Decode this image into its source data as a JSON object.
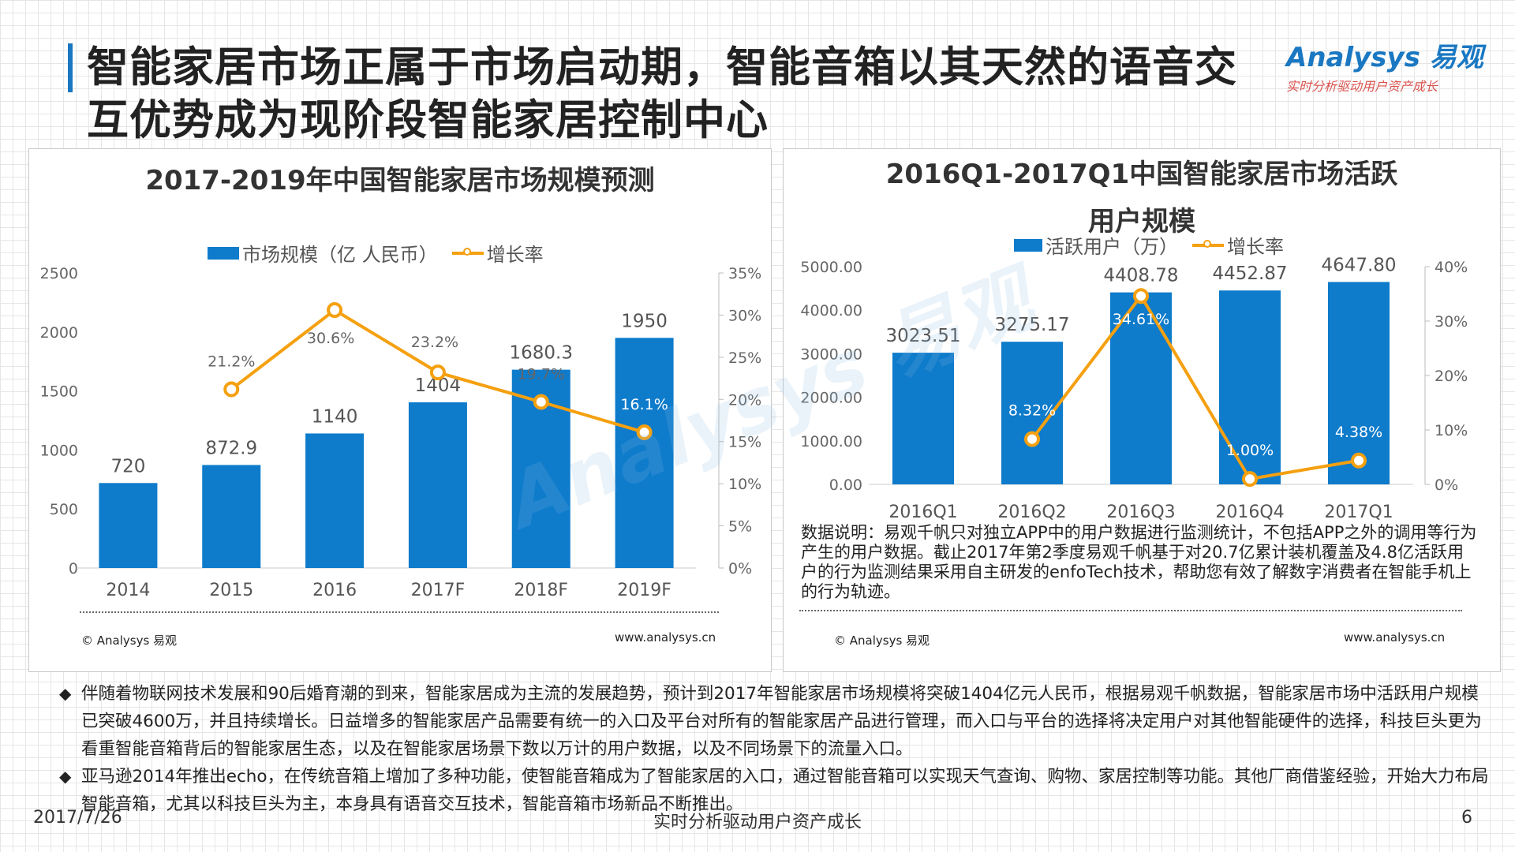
{
  "page": {
    "title_line1": "智能家居市场正属于市场启动期，智能音箱以其天然的语音交",
    "title_line2": "互优势成为现阶段智能家居控制中心",
    "logo_main": "Analysys 易观",
    "logo_sub": "实时分析驱动用户资产成长",
    "date": "2017/7/26",
    "slogan": "实时分析驱动用户资产成长",
    "page_number": "6",
    "bullets": [
      "伴随着物联网技术发展和90后婚育潮的到来，智能家居成为主流的发展趋势，预计到2017年智能家居市场规模将突破1404亿元人民币，根据易观千帆数据，智能家居市场中活跃用户规模已突破4600万，并且持续增长。日益增多的智能家居产品需要有统一的入口及平台对所有的智能家居产品进行管理，而入口与平台的选择将决定用户对其他智能硬件的选择，科技巨头更为看重智能音箱背后的智能家居生态，以及在智能家居场景下数以万计的用户数据，以及不同场景下的流量入口。",
      "亚马逊2014年推出echo，在传统音箱上增加了多种功能，使智能音箱成为了智能家居的入口，通过智能音箱可以实现天气查询、购物、家居控制等功能。其他厂商借鉴经验，开始大力布局智能音箱，尤其以科技巨头为主，本身具有语音交互技术，智能音箱市场新品不断推出。"
    ],
    "bullet_marker": "◆",
    "watermark": "Analysys 易观"
  },
  "colors": {
    "bar": "#0e7bcb",
    "line": "#f5a00f",
    "accent": "#1a78c2"
  },
  "chart_data": [
    {
      "type": "bar",
      "title": "2017-2019年中国智能家居市场规模预测",
      "categories": [
        "2014",
        "2015",
        "2016",
        "2017F",
        "2018F",
        "2019F"
      ],
      "series": [
        {
          "name": "市场规模（亿 人民币）",
          "type": "bar",
          "axis": "left",
          "values": [
            720,
            872.9,
            1140,
            1404,
            1680.3,
            1950
          ],
          "labels": [
            "720",
            "872.9",
            "1140",
            "1404",
            "1680.3",
            "1950"
          ]
        },
        {
          "name": "增长率",
          "type": "line",
          "axis": "right",
          "values": [
            null,
            21.2,
            30.6,
            23.2,
            19.7,
            16.1
          ],
          "labels": [
            "",
            "21.2%",
            "30.6%",
            "23.2%",
            "19.7%",
            "16.1%"
          ]
        }
      ],
      "ylim": [
        0,
        2500
      ],
      "yticks": [
        "2500",
        "2000",
        "1500",
        "1000",
        "500",
        "0"
      ],
      "y2lim": [
        0,
        35
      ],
      "y2ticks": [
        "35%",
        "30%",
        "25%",
        "20%",
        "15%",
        "10%",
        "5%",
        "0%"
      ],
      "legend": "top",
      "source": "© Analysys 易观",
      "website": "www.analysys.cn"
    },
    {
      "type": "bar",
      "title_line1": "2016Q1-2017Q1中国智能家居市场活跃",
      "title_line2": "用户规模",
      "categories": [
        "2016Q1",
        "2016Q2",
        "2016Q3",
        "2016Q4",
        "2017Q1"
      ],
      "series": [
        {
          "name": "活跃用户（万）",
          "type": "bar",
          "axis": "left",
          "values": [
            3023.51,
            3275.17,
            4408.78,
            4452.87,
            4647.8
          ],
          "labels": [
            "3023.51",
            "3275.17",
            "4408.78",
            "4452.87",
            "4647.80"
          ]
        },
        {
          "name": "增长率",
          "type": "line",
          "axis": "right",
          "values": [
            null,
            8.32,
            34.61,
            1.0,
            4.38
          ],
          "labels": [
            "",
            "8.32%",
            "34.61%",
            "1.00%",
            "4.38%"
          ]
        }
      ],
      "ylim": [
        0,
        5000
      ],
      "yticks": [
        "5000.00",
        "4000.00",
        "3000.00",
        "2000.00",
        "1000.00",
        "0.00"
      ],
      "y2lim": [
        0,
        40
      ],
      "y2ticks": [
        "40%",
        "30%",
        "20%",
        "10%",
        "0%"
      ],
      "legend": "top",
      "note": "数据说明：易观千帆只对独立APP中的用户数据进行监测统计，不包括APP之外的调用等行为产生的用户数据。截止2017年第2季度易观千帆基于对20.7亿累计装机覆盖及4.8亿活跃用户的行为监测结果采用自主研发的enfoTech技术，帮助您有效了解数字消费者在智能手机上的行为轨迹。",
      "source": "© Analysys 易观",
      "website": "www.analysys.cn"
    }
  ]
}
